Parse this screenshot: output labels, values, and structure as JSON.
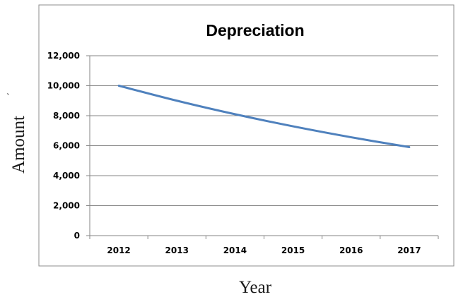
{
  "chart_data": {
    "type": "line",
    "title": "Depreciation",
    "xlabel": "Year",
    "ylabel": "Amount",
    "ylabel_mark": "`",
    "categories": [
      "2012",
      "2013",
      "2014",
      "2015",
      "2016",
      "2017"
    ],
    "series": [
      {
        "values": [
          10000,
          9000,
          8100,
          7290,
          6561,
          5905
        ],
        "color": "#4f81bd"
      }
    ],
    "ylim": [
      0,
      12000
    ],
    "yticks": [
      {
        "value": 0,
        "label": "0"
      },
      {
        "value": 2000,
        "label": "2,000"
      },
      {
        "value": 4000,
        "label": "4,000"
      },
      {
        "value": 6000,
        "label": "6,000"
      },
      {
        "value": 8000,
        "label": "8,000"
      },
      {
        "value": 10000,
        "label": "10,000"
      },
      {
        "value": 12000,
        "label": "12,000"
      }
    ],
    "grid": true,
    "legend": "none"
  }
}
